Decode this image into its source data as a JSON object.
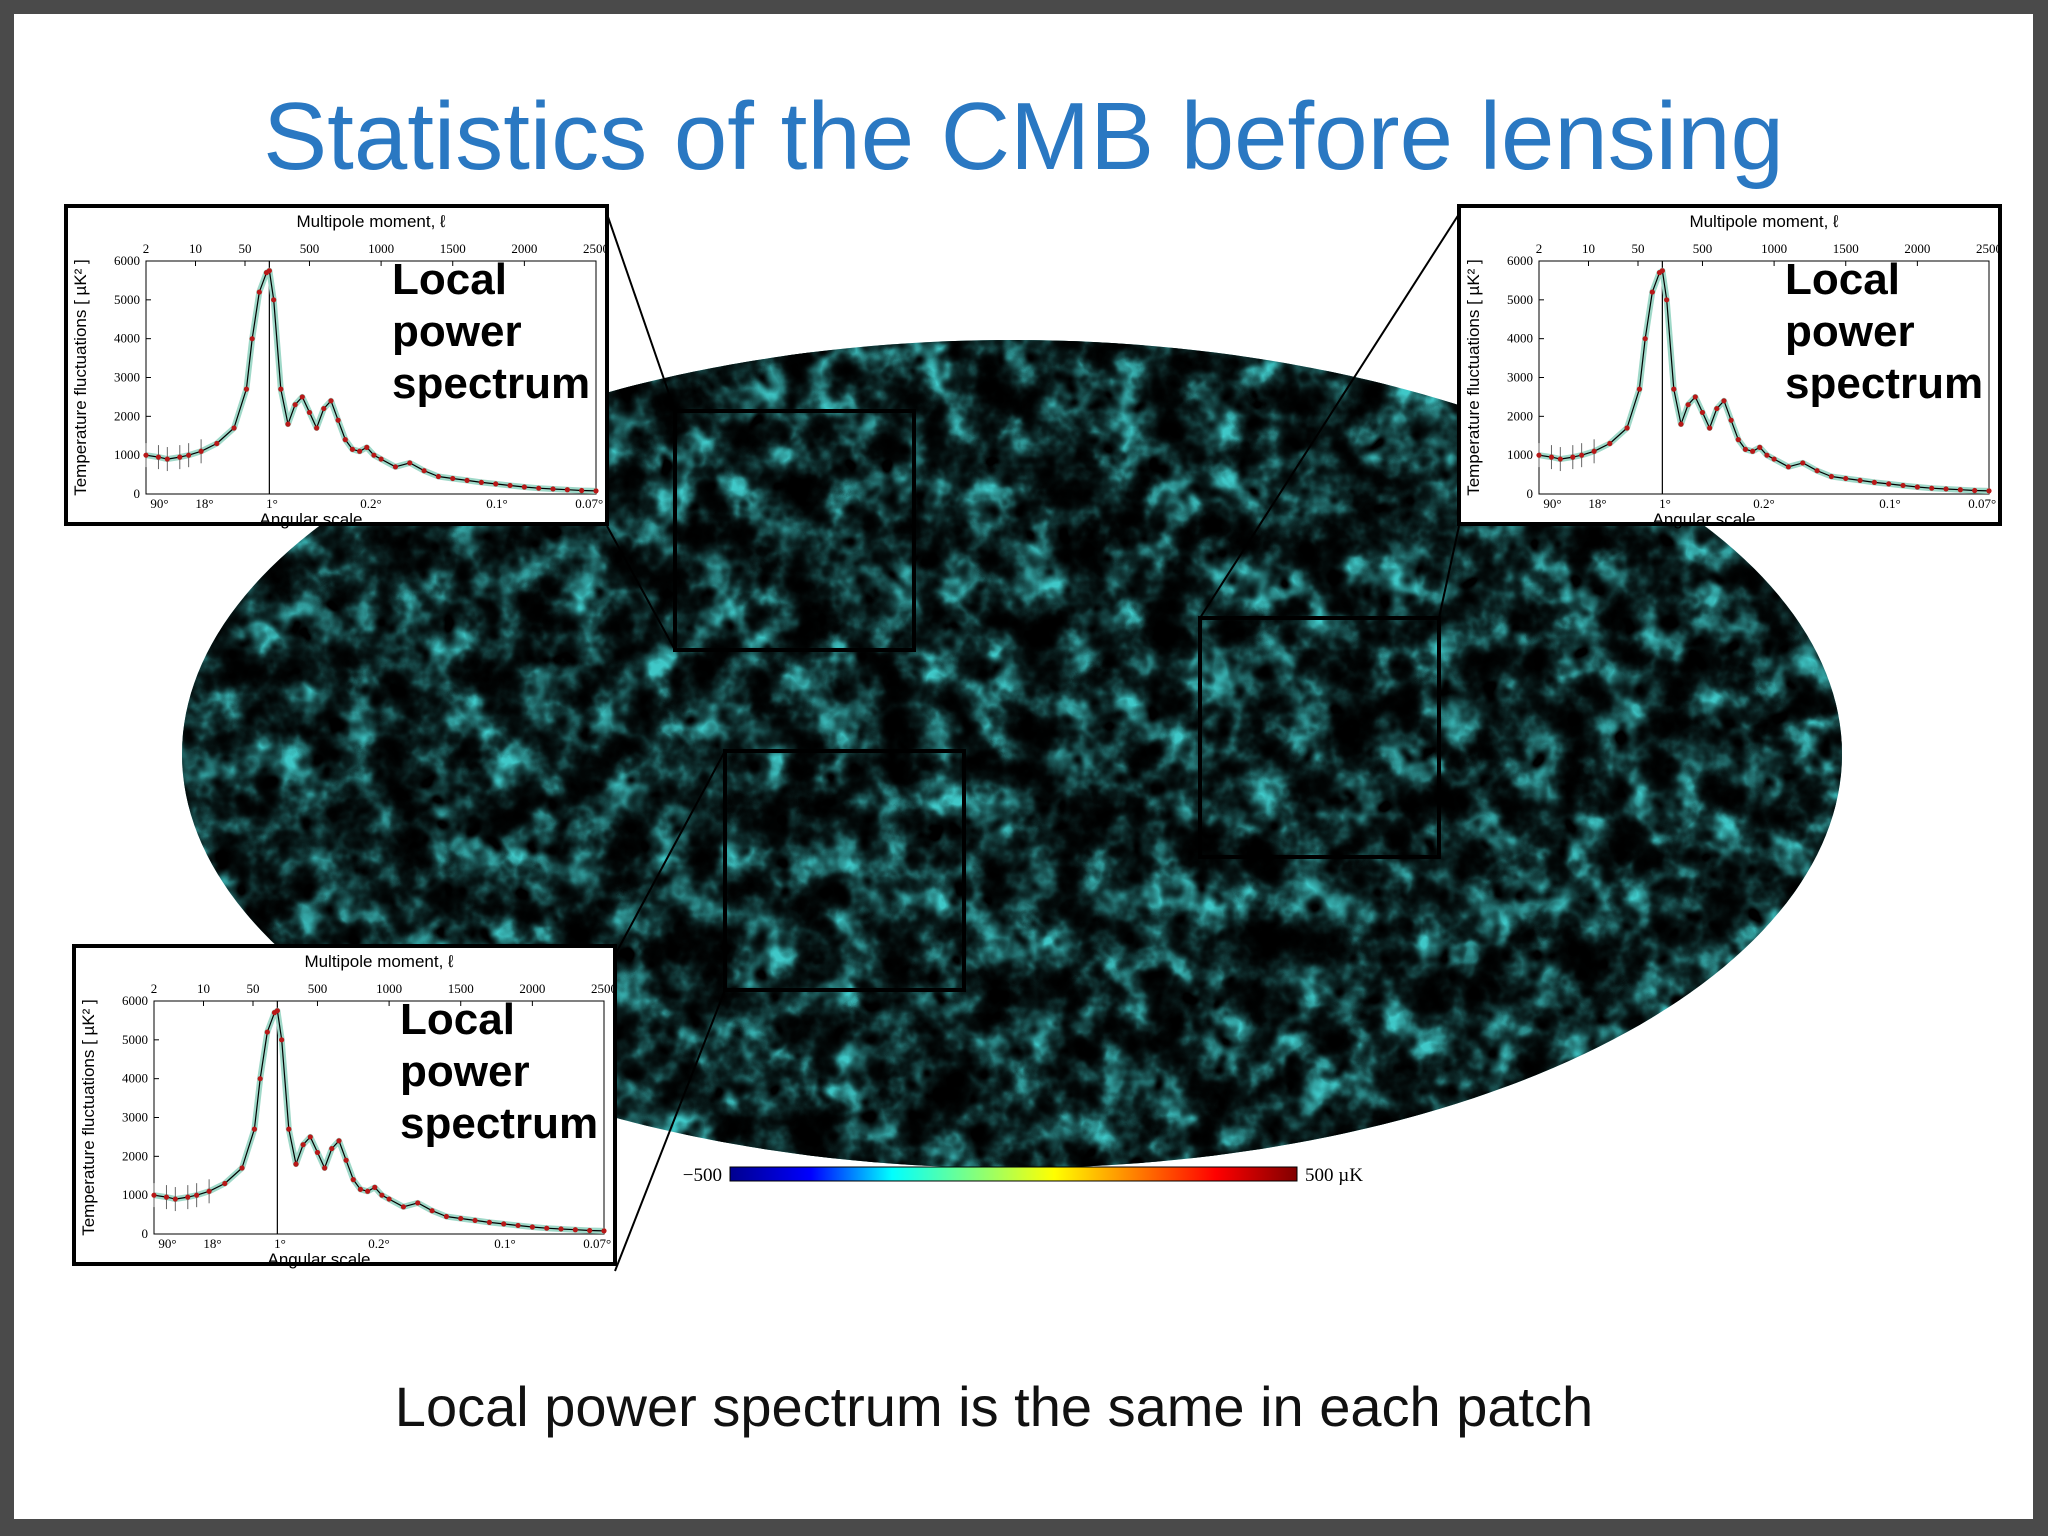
{
  "slide": {
    "title": "Statistics of the CMB before lensing",
    "caption": "Local power spectrum is the same in each patch"
  },
  "colorbar": {
    "min_label": "−500",
    "max_label": "500 µK",
    "colors": [
      "#00008f",
      "#0000ff",
      "#00ffff",
      "#80ff80",
      "#ffff00",
      "#ff8000",
      "#ff0000",
      "#800000"
    ]
  },
  "inset": {
    "label_lines": [
      "Local",
      "power",
      "spectrum"
    ],
    "top_axis_title": "Multipole moment, ℓ",
    "bottom_axis_title": "Angular scale",
    "y_axis_title": "Temperature fluctuations [ µK² ]",
    "top_ticks": [
      "2",
      "10",
      "50",
      "500",
      "1000",
      "1500",
      "2000",
      "2500"
    ],
    "bottom_ticks": [
      "90°",
      "18°",
      "1°",
      "0.2°",
      "0.1°",
      "0.07°"
    ],
    "y_ticks": [
      "0",
      "1000",
      "2000",
      "3000",
      "4000",
      "5000",
      "6000"
    ]
  },
  "chart_data": {
    "type": "line",
    "xlabel": "Multipole moment, ℓ",
    "ylabel": "Temperature fluctuations [ µK² ]",
    "ylim": [
      0,
      6000
    ],
    "xlim": [
      2,
      2500
    ],
    "series": [
      {
        "x": [
          2,
          3,
          4,
          6,
          8,
          12,
          20,
          35,
          60,
          100,
          150,
          200,
          220,
          250,
          300,
          350,
          400,
          450,
          500,
          550,
          600,
          650,
          700,
          750,
          800,
          850,
          900,
          950,
          1000,
          1100,
          1200,
          1300,
          1400,
          1500,
          1600,
          1700,
          1800,
          1900,
          2000,
          2100,
          2200,
          2300,
          2400,
          2500
        ],
        "values": [
          1000,
          950,
          900,
          950,
          1000,
          1100,
          1300,
          1700,
          2700,
          4000,
          5200,
          5700,
          5750,
          5000,
          2700,
          1800,
          2300,
          2500,
          2100,
          1700,
          2200,
          2400,
          1900,
          1400,
          1150,
          1100,
          1200,
          1000,
          900,
          700,
          800,
          600,
          450,
          400,
          350,
          300,
          260,
          220,
          180,
          150,
          130,
          110,
          90,
          80
        ]
      }
    ]
  }
}
